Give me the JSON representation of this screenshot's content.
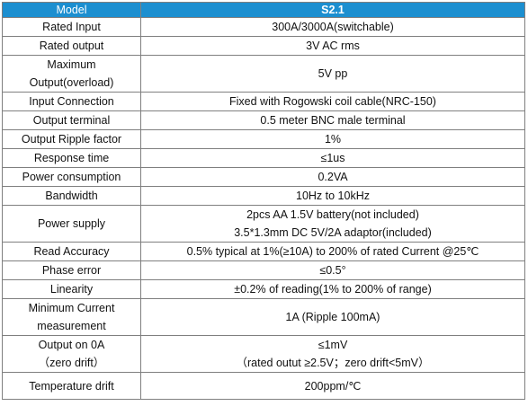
{
  "header": {
    "label": "Model",
    "value": "S2.1"
  },
  "colors": {
    "header_bg": "#1c8fd0",
    "header_text": "#ffffff",
    "border": "#7f7f7f"
  },
  "rows": [
    {
      "label": [
        "Rated Input"
      ],
      "value": [
        "300A/3000A(switchable)"
      ]
    },
    {
      "label": [
        "Rated output"
      ],
      "value": [
        "3V AC rms"
      ]
    },
    {
      "label": [
        "Maximum",
        "Output(overload)"
      ],
      "value": [
        "5V pp"
      ]
    },
    {
      "label": [
        "Input Connection"
      ],
      "value": [
        "Fixed with Rogowski coil cable(NRC-150)"
      ]
    },
    {
      "label": [
        "Output terminal"
      ],
      "value": [
        "0.5 meter BNC male terminal"
      ]
    },
    {
      "label": [
        "Output Ripple factor"
      ],
      "value": [
        "1%"
      ]
    },
    {
      "label": [
        "Response time"
      ],
      "value": [
        "≤1us"
      ]
    },
    {
      "label": [
        "Power consumption"
      ],
      "value": [
        "0.2VA"
      ]
    },
    {
      "label": [
        "Bandwidth"
      ],
      "value": [
        "10Hz to 10kHz"
      ]
    },
    {
      "label": [
        "Power supply"
      ],
      "value": [
        "2pcs AA 1.5V battery(not included)",
        "3.5*1.3mm DC 5V/2A adaptor(included)"
      ]
    },
    {
      "label": [
        "Read Accuracy"
      ],
      "value": [
        "0.5% typical at 1%(≥10A) to 200% of rated Current @25℃"
      ]
    },
    {
      "label": [
        "Phase error"
      ],
      "value": [
        "≤0.5°"
      ]
    },
    {
      "label": [
        "Linearity"
      ],
      "value": [
        "±0.2% of reading(1% to 200% of range)"
      ]
    },
    {
      "label": [
        "Minimum Current",
        "measurement"
      ],
      "value": [
        "1A (Ripple 100mA)"
      ]
    },
    {
      "label": [
        "Output on 0A",
        "（zero drift）"
      ],
      "value": [
        "≤1mV",
        "（rated outut ≥2.5V；zero drift<5mV）"
      ]
    },
    {
      "label": [
        "Temperature drift"
      ],
      "value": [
        "200ppm/℃"
      ]
    }
  ]
}
